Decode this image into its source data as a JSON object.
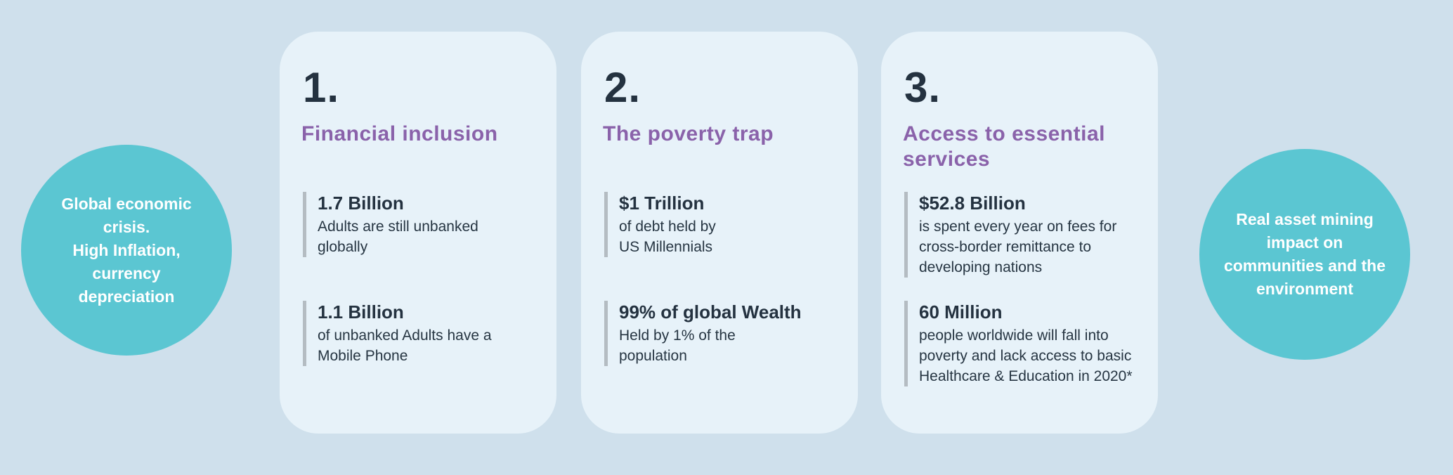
{
  "colors": {
    "page_background": "#cfe0ec",
    "card_background": "#e7f2f9",
    "circle_teal": "#5bc6d2",
    "heading_purple": "#8a62aa",
    "text_dark_navy": "#243240",
    "stat_bar_gray": "#b4bcc2",
    "circle_text_white": "#ffffff"
  },
  "left_circle": {
    "text": "Global economic\ncrisis.\nHigh Inflation,\ncurrency\ndepreciation"
  },
  "right_circle": {
    "text": "Real asset  mining\nimpact on\ncommunities and the\nenvironment"
  },
  "cards": [
    {
      "number": "1.",
      "title": "Financial inclusion",
      "stats": [
        {
          "value": "1.7 Billion",
          "description": "Adults are still unbanked\nglobally"
        },
        {
          "value": "1.1 Billion",
          "description": "of unbanked Adults have a\nMobile Phone"
        }
      ]
    },
    {
      "number": "2.",
      "title": "The poverty trap",
      "stats": [
        {
          "value": "$1 Trillion",
          "description": "of debt held by\nUS Millennials"
        },
        {
          "value": "99% of global Wealth",
          "description": "Held by 1% of the\npopulation"
        }
      ]
    },
    {
      "number": "3.",
      "title": "Access to essential\nservices",
      "stats": [
        {
          "value": "$52.8 Billion",
          "description": "is spent every year on fees for\ncross-border remittance to\ndeveloping nations"
        },
        {
          "value": "60 Million",
          "description": "people worldwide will fall into\npoverty and lack access to basic\nHealthcare & Education in 2020*"
        }
      ]
    }
  ]
}
